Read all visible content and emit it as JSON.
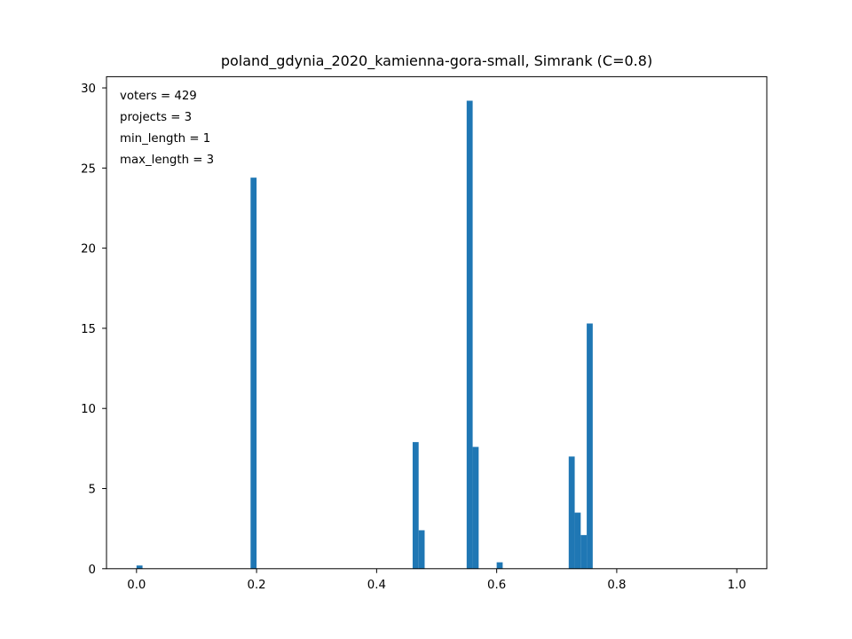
{
  "chart_data": {
    "type": "bar",
    "title": "poland_gdynia_2020_kamienna-gora-small, Simrank (C=0.8)",
    "xlabel": "",
    "ylabel": "",
    "xlim": [
      -0.05,
      1.05
    ],
    "ylim": [
      0,
      30.7
    ],
    "bin_width": 0.01,
    "x_ticks": [
      0.0,
      0.2,
      0.4,
      0.6,
      0.8,
      1.0
    ],
    "x_tick_labels": [
      "0.0",
      "0.2",
      "0.4",
      "0.6",
      "0.8",
      "1.0"
    ],
    "y_ticks": [
      0,
      5,
      10,
      15,
      20,
      25,
      30
    ],
    "y_tick_labels": [
      "0",
      "5",
      "10",
      "15",
      "20",
      "25",
      "30"
    ],
    "grid": false,
    "bar_color": "#1f77b4",
    "bins": [
      {
        "x": 0.0,
        "value": 0.2
      },
      {
        "x": 0.19,
        "value": 24.4
      },
      {
        "x": 0.46,
        "value": 7.9
      },
      {
        "x": 0.47,
        "value": 2.4
      },
      {
        "x": 0.55,
        "value": 29.2
      },
      {
        "x": 0.56,
        "value": 7.6
      },
      {
        "x": 0.6,
        "value": 0.4
      },
      {
        "x": 0.72,
        "value": 7.0
      },
      {
        "x": 0.73,
        "value": 3.5
      },
      {
        "x": 0.74,
        "value": 2.1
      },
      {
        "x": 0.75,
        "value": 15.3
      }
    ],
    "annotations": [
      "voters = 429",
      "projects = 3",
      "min_length = 1",
      "max_length = 3"
    ]
  }
}
